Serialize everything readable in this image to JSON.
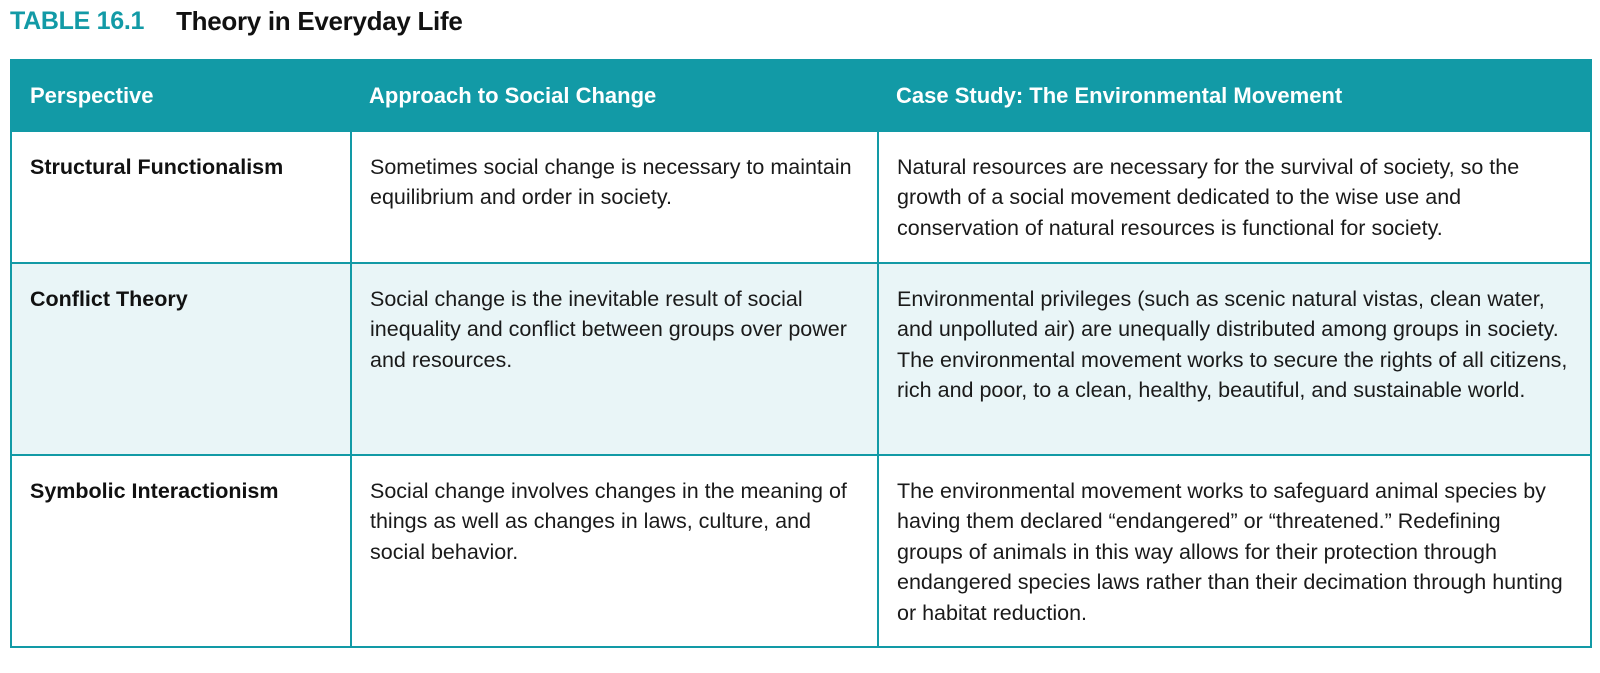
{
  "caption": {
    "label": "TABLE 16.1",
    "title": "Theory in Everyday Life"
  },
  "table": {
    "headers": [
      "Perspective",
      "Approach to Social Change",
      "Case Study: The Environmental Movement"
    ],
    "rows": [
      {
        "perspective": "Structural Functionalism",
        "approach": "Sometimes social change is necessary to maintain equilibrium and order in society.",
        "case_study": "Natural resources are necessary for the survival of society, so the growth of a social movement dedicated to the wise use and conservation of natural resources is functional for society."
      },
      {
        "perspective": "Conflict Theory",
        "approach": "Social change is the inevitable result of social inequality and conflict between groups over power and resources.",
        "case_study": "Environmental privileges (such as scenic natural vistas, clean water, and unpolluted air) are unequally distributed among groups in society. The environmental movement works to secure the rights of all citizens, rich and poor, to a clean, healthy, beautiful, and sustainable world."
      },
      {
        "perspective": "Symbolic Interactionism",
        "approach": "Social change involves changes in the meaning of things as well as changes in laws, culture, and social behavior.",
        "case_study": "The environmental movement works to safeguard animal species by having them declared “endangered” or “threatened.” Redefining groups of animals in this way allows for their protection through endangered species laws rather than their decimation through hunting or habitat reduction."
      }
    ]
  },
  "colors": {
    "accent": "#129aa6",
    "alt_row": "#e9f5f7",
    "text": "#1a1a1a"
  }
}
